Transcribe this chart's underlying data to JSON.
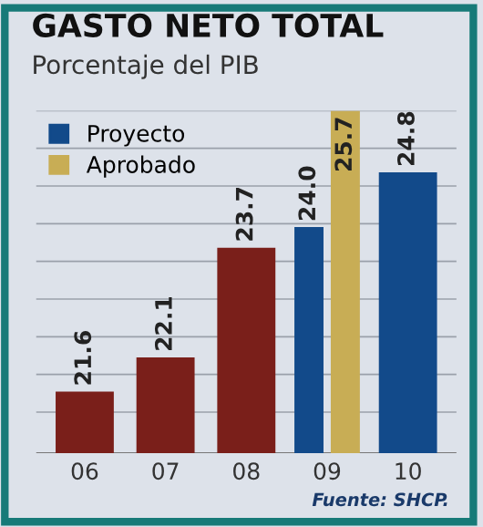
{
  "chart_data": {
    "type": "bar",
    "title": "GASTO NETO TOTAL",
    "subtitle": "Porcentaje del PIB",
    "categories": [
      "06",
      "07",
      "08",
      "09",
      "10"
    ],
    "series": [
      {
        "color": "#7a1f1a",
        "values": [
          21.6,
          22.1,
          23.7,
          null,
          null
        ],
        "value_labels": [
          "21.6",
          "22.1",
          "23.7",
          null,
          null
        ]
      },
      {
        "name": "Proyecto",
        "color": "#124a8a",
        "values": [
          null,
          null,
          null,
          24.0,
          24.8
        ],
        "value_labels": [
          null,
          null,
          null,
          "24.0",
          "24.8"
        ]
      },
      {
        "name": "Aprobado",
        "color": "#c8ad55",
        "values": [
          null,
          null,
          null,
          25.7,
          null
        ],
        "value_labels": [
          null,
          null,
          null,
          "25.7",
          null
        ]
      }
    ],
    "ylim": [
      20.7,
      25.7
    ],
    "yticks": [
      {
        "value": 21.3,
        "label": null
      },
      {
        "value": 21.85,
        "label": null
      },
      {
        "value": 22.4,
        "label": null
      },
      {
        "value": 22.95,
        "label": null
      },
      {
        "value": 23.5,
        "label": null
      },
      {
        "value": 24.05,
        "label": null
      },
      {
        "value": 24.6,
        "label": null
      },
      {
        "value": 25.15,
        "label": null
      },
      {
        "value": 25.7,
        "label": null
      }
    ],
    "grid": "y",
    "legend": "top left",
    "tick_labels": "x",
    "annotations": [
      "Fuente: SHCP."
    ]
  }
}
